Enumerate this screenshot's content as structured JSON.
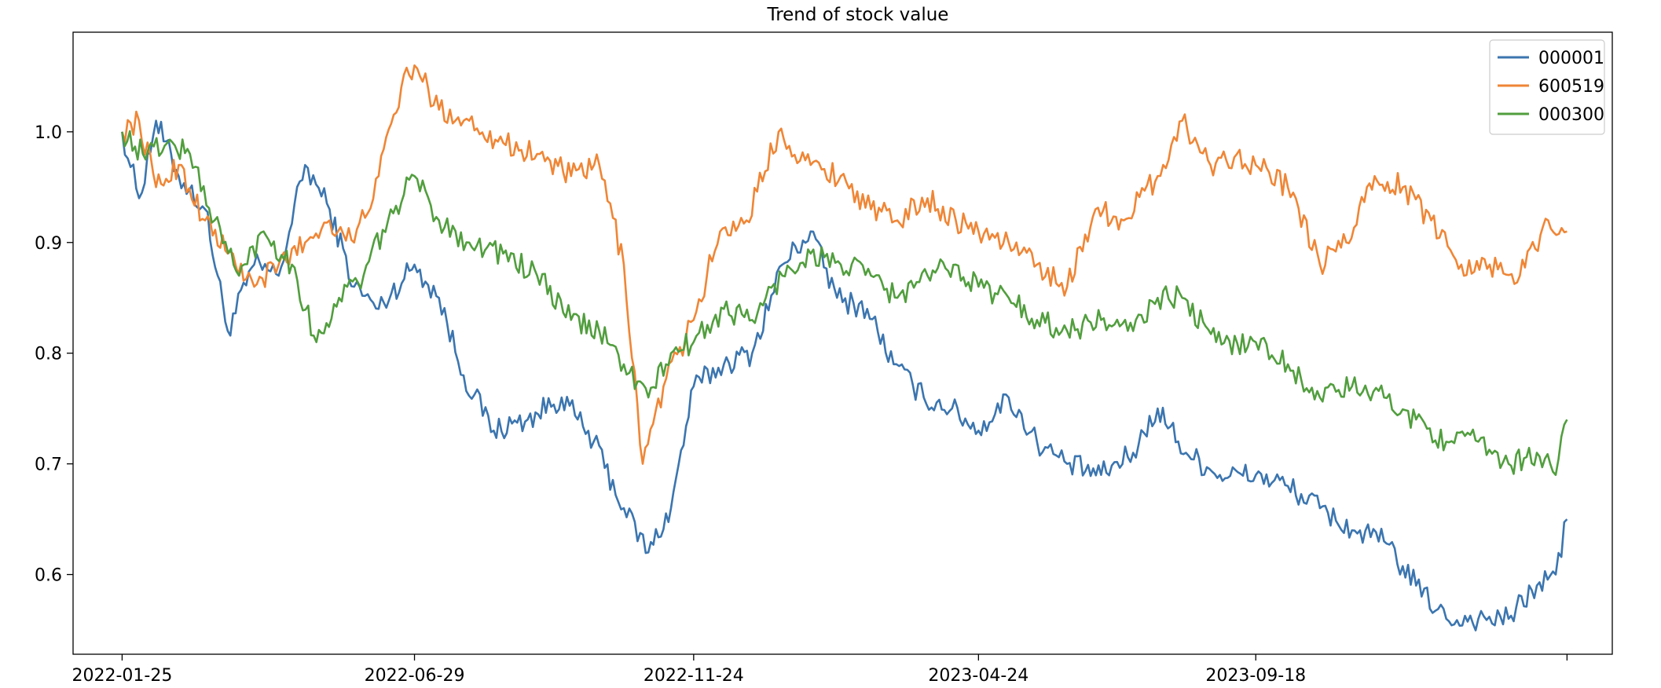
{
  "chart_data": {
    "type": "line",
    "title": "Trend of stock value",
    "xlabel": "",
    "ylabel": "",
    "x_start": "2022-01-25",
    "x_end": "2024-03-01",
    "xlim": [
      "2021-12-30",
      "2024-03-25"
    ],
    "ylim": [
      0.528,
      1.09
    ],
    "x_ticks": [
      "2022-01-25",
      "2022-06-29",
      "2022-11-24",
      "2023-04-24",
      "2023-09-18",
      ""
    ],
    "y_ticks": [
      0.6,
      0.7,
      0.8,
      0.9,
      1.0
    ],
    "y_tick_labels": [
      "0.6",
      "0.7",
      "0.8",
      "0.9",
      "1.0"
    ],
    "grid": false,
    "legend_position": "top-right",
    "series": [
      {
        "name": "000001",
        "color": "#3b75af",
        "points": [
          [
            "2022-01-25",
            1.0
          ],
          [
            "2022-02-03",
            0.94
          ],
          [
            "2022-02-12",
            1.01
          ],
          [
            "2022-02-24",
            0.96
          ],
          [
            "2022-03-10",
            0.93
          ],
          [
            "2022-03-22",
            0.82
          ],
          [
            "2022-04-05",
            0.88
          ],
          [
            "2022-04-18",
            0.87
          ],
          [
            "2022-05-02",
            0.97
          ],
          [
            "2022-05-15",
            0.93
          ],
          [
            "2022-05-28",
            0.86
          ],
          [
            "2022-06-10",
            0.84
          ],
          [
            "2022-06-29",
            0.88
          ],
          [
            "2022-07-12",
            0.85
          ],
          [
            "2022-07-25",
            0.78
          ],
          [
            "2022-08-10",
            0.73
          ],
          [
            "2022-08-28",
            0.74
          ],
          [
            "2022-09-15",
            0.76
          ],
          [
            "2022-10-02",
            0.72
          ],
          [
            "2022-10-18",
            0.66
          ],
          [
            "2022-10-31",
            0.62
          ],
          [
            "2022-11-12",
            0.66
          ],
          [
            "2022-11-24",
            0.77
          ],
          [
            "2022-12-10",
            0.79
          ],
          [
            "2022-12-25",
            0.8
          ],
          [
            "2023-01-10",
            0.88
          ],
          [
            "2023-01-25",
            0.91
          ],
          [
            "2023-02-08",
            0.85
          ],
          [
            "2023-02-24",
            0.84
          ],
          [
            "2023-03-10",
            0.79
          ],
          [
            "2023-03-26",
            0.76
          ],
          [
            "2023-04-10",
            0.75
          ],
          [
            "2023-04-24",
            0.73
          ],
          [
            "2023-05-10",
            0.76
          ],
          [
            "2023-05-25",
            0.72
          ],
          [
            "2023-06-10",
            0.7
          ],
          [
            "2023-06-28",
            0.69
          ],
          [
            "2023-07-15",
            0.71
          ],
          [
            "2023-07-28",
            0.75
          ],
          [
            "2023-08-12",
            0.71
          ],
          [
            "2023-08-30",
            0.69
          ],
          [
            "2023-09-18",
            0.69
          ],
          [
            "2023-10-05",
            0.68
          ],
          [
            "2023-10-22",
            0.66
          ],
          [
            "2023-11-08",
            0.64
          ],
          [
            "2023-11-25",
            0.63
          ],
          [
            "2023-12-12",
            0.59
          ],
          [
            "2023-12-28",
            0.56
          ],
          [
            "2024-01-14",
            0.56
          ],
          [
            "2024-01-30",
            0.56
          ],
          [
            "2024-02-14",
            0.59
          ],
          [
            "2024-02-24",
            0.6
          ],
          [
            "2024-03-01",
            0.65
          ]
        ]
      },
      {
        "name": "600519",
        "color": "#ef8636",
        "points": [
          [
            "2022-01-25",
            1.0
          ],
          [
            "2022-02-03",
            1.01
          ],
          [
            "2022-02-12",
            0.95
          ],
          [
            "2022-02-24",
            0.97
          ],
          [
            "2022-03-10",
            0.92
          ],
          [
            "2022-03-22",
            0.89
          ],
          [
            "2022-04-05",
            0.86
          ],
          [
            "2022-04-18",
            0.88
          ],
          [
            "2022-05-02",
            0.9
          ],
          [
            "2022-05-15",
            0.92
          ],
          [
            "2022-05-28",
            0.9
          ],
          [
            "2022-06-10",
            0.96
          ],
          [
            "2022-06-22",
            1.04
          ],
          [
            "2022-06-29",
            1.06
          ],
          [
            "2022-07-12",
            1.02
          ],
          [
            "2022-07-28",
            1.01
          ],
          [
            "2022-08-15",
            0.99
          ],
          [
            "2022-09-02",
            0.98
          ],
          [
            "2022-09-20",
            0.96
          ],
          [
            "2022-10-05",
            0.97
          ],
          [
            "2022-10-18",
            0.88
          ],
          [
            "2022-10-28",
            0.7
          ],
          [
            "2022-11-08",
            0.77
          ],
          [
            "2022-11-24",
            0.83
          ],
          [
            "2022-12-08",
            0.91
          ],
          [
            "2022-12-22",
            0.92
          ],
          [
            "2023-01-08",
            1.0
          ],
          [
            "2023-01-25",
            0.97
          ],
          [
            "2023-02-10",
            0.96
          ],
          [
            "2023-02-26",
            0.93
          ],
          [
            "2023-03-12",
            0.92
          ],
          [
            "2023-03-28",
            0.94
          ],
          [
            "2023-04-12",
            0.92
          ],
          [
            "2023-04-24",
            0.91
          ],
          [
            "2023-05-10",
            0.9
          ],
          [
            "2023-05-25",
            0.88
          ],
          [
            "2023-06-10",
            0.86
          ],
          [
            "2023-06-25",
            0.93
          ],
          [
            "2023-07-10",
            0.92
          ],
          [
            "2023-07-28",
            0.96
          ],
          [
            "2023-08-10",
            1.01
          ],
          [
            "2023-08-25",
            0.97
          ],
          [
            "2023-09-08",
            0.98
          ],
          [
            "2023-09-18",
            0.97
          ],
          [
            "2023-10-05",
            0.95
          ],
          [
            "2023-10-22",
            0.88
          ],
          [
            "2023-11-05",
            0.9
          ],
          [
            "2023-11-20",
            0.96
          ],
          [
            "2023-12-05",
            0.95
          ],
          [
            "2023-12-20",
            0.92
          ],
          [
            "2024-01-05",
            0.88
          ],
          [
            "2024-01-20",
            0.88
          ],
          [
            "2024-02-05",
            0.87
          ],
          [
            "2024-02-20",
            0.92
          ],
          [
            "2024-03-01",
            0.91
          ]
        ]
      },
      {
        "name": "000300",
        "color": "#519e3e",
        "points": [
          [
            "2022-01-25",
            1.0
          ],
          [
            "2022-02-05",
            0.98
          ],
          [
            "2022-02-18",
            0.99
          ],
          [
            "2022-03-02",
            0.98
          ],
          [
            "2022-03-15",
            0.92
          ],
          [
            "2022-03-28",
            0.87
          ],
          [
            "2022-04-10",
            0.91
          ],
          [
            "2022-04-25",
            0.88
          ],
          [
            "2022-05-08",
            0.81
          ],
          [
            "2022-05-20",
            0.85
          ],
          [
            "2022-06-02",
            0.87
          ],
          [
            "2022-06-15",
            0.92
          ],
          [
            "2022-06-29",
            0.96
          ],
          [
            "2022-07-12",
            0.92
          ],
          [
            "2022-07-28",
            0.9
          ],
          [
            "2022-08-15",
            0.89
          ],
          [
            "2022-09-02",
            0.87
          ],
          [
            "2022-09-20",
            0.83
          ],
          [
            "2022-10-05",
            0.82
          ],
          [
            "2022-10-18",
            0.79
          ],
          [
            "2022-10-31",
            0.76
          ],
          [
            "2022-11-12",
            0.8
          ],
          [
            "2022-11-24",
            0.81
          ],
          [
            "2022-12-10",
            0.84
          ],
          [
            "2022-12-25",
            0.83
          ],
          [
            "2023-01-10",
            0.87
          ],
          [
            "2023-01-25",
            0.89
          ],
          [
            "2023-02-10",
            0.88
          ],
          [
            "2023-02-26",
            0.87
          ],
          [
            "2023-03-12",
            0.85
          ],
          [
            "2023-03-28",
            0.87
          ],
          [
            "2023-04-12",
            0.88
          ],
          [
            "2023-04-24",
            0.86
          ],
          [
            "2023-05-10",
            0.85
          ],
          [
            "2023-05-25",
            0.83
          ],
          [
            "2023-06-10",
            0.82
          ],
          [
            "2023-06-28",
            0.83
          ],
          [
            "2023-07-15",
            0.82
          ],
          [
            "2023-07-28",
            0.85
          ],
          [
            "2023-08-10",
            0.85
          ],
          [
            "2023-08-28",
            0.81
          ],
          [
            "2023-09-18",
            0.81
          ],
          [
            "2023-10-05",
            0.79
          ],
          [
            "2023-10-22",
            0.76
          ],
          [
            "2023-11-08",
            0.77
          ],
          [
            "2023-11-25",
            0.76
          ],
          [
            "2023-12-12",
            0.74
          ],
          [
            "2023-12-28",
            0.72
          ],
          [
            "2024-01-14",
            0.72
          ],
          [
            "2024-01-30",
            0.7
          ],
          [
            "2024-02-14",
            0.71
          ],
          [
            "2024-02-24",
            0.69
          ],
          [
            "2024-03-01",
            0.74
          ]
        ]
      }
    ]
  }
}
